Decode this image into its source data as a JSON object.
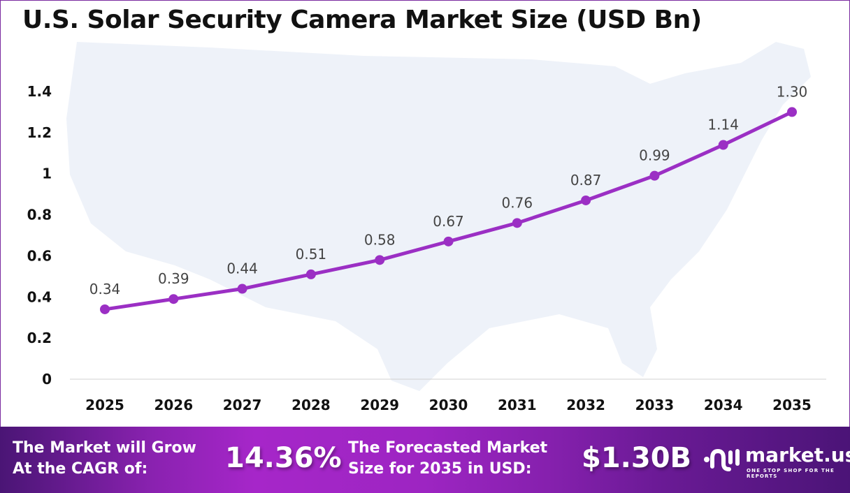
{
  "title": "U.S. Solar Security Camera Market Size (USD Bn)",
  "chart_data": {
    "type": "line",
    "title": "U.S. Solar Security Camera Market Size (USD Bn)",
    "categories": [
      "2025",
      "2026",
      "2027",
      "2028",
      "2029",
      "2030",
      "2031",
      "2032",
      "2033",
      "2034",
      "2035"
    ],
    "values": [
      0.34,
      0.39,
      0.44,
      0.51,
      0.58,
      0.67,
      0.76,
      0.87,
      0.99,
      1.14,
      1.3
    ],
    "data_labels": [
      "0.34",
      "0.39",
      "0.44",
      "0.51",
      "0.58",
      "0.67",
      "0.76",
      "0.87",
      "0.99",
      "1.14",
      "1.30"
    ],
    "yticks": [
      "0",
      "0.2",
      "0.4",
      "0.6",
      "0.8",
      "1",
      "1.2",
      "1.4"
    ],
    "ylim": [
      0,
      1.4
    ],
    "grid": false,
    "line_color": "#9b2fc4",
    "background": "US map silhouette watermark"
  },
  "footer": {
    "cagr_label_1": "The Market will Grow",
    "cagr_label_2": "At the CAGR of:",
    "cagr_value": "14.36%",
    "forecast_label_1": "The Forecasted Market",
    "forecast_label_2": "Size for 2035 in USD:",
    "forecast_value": "$1.30B",
    "logo_name": "market.us",
    "logo_tagline": "ONE STOP SHOP FOR THE REPORTS"
  }
}
